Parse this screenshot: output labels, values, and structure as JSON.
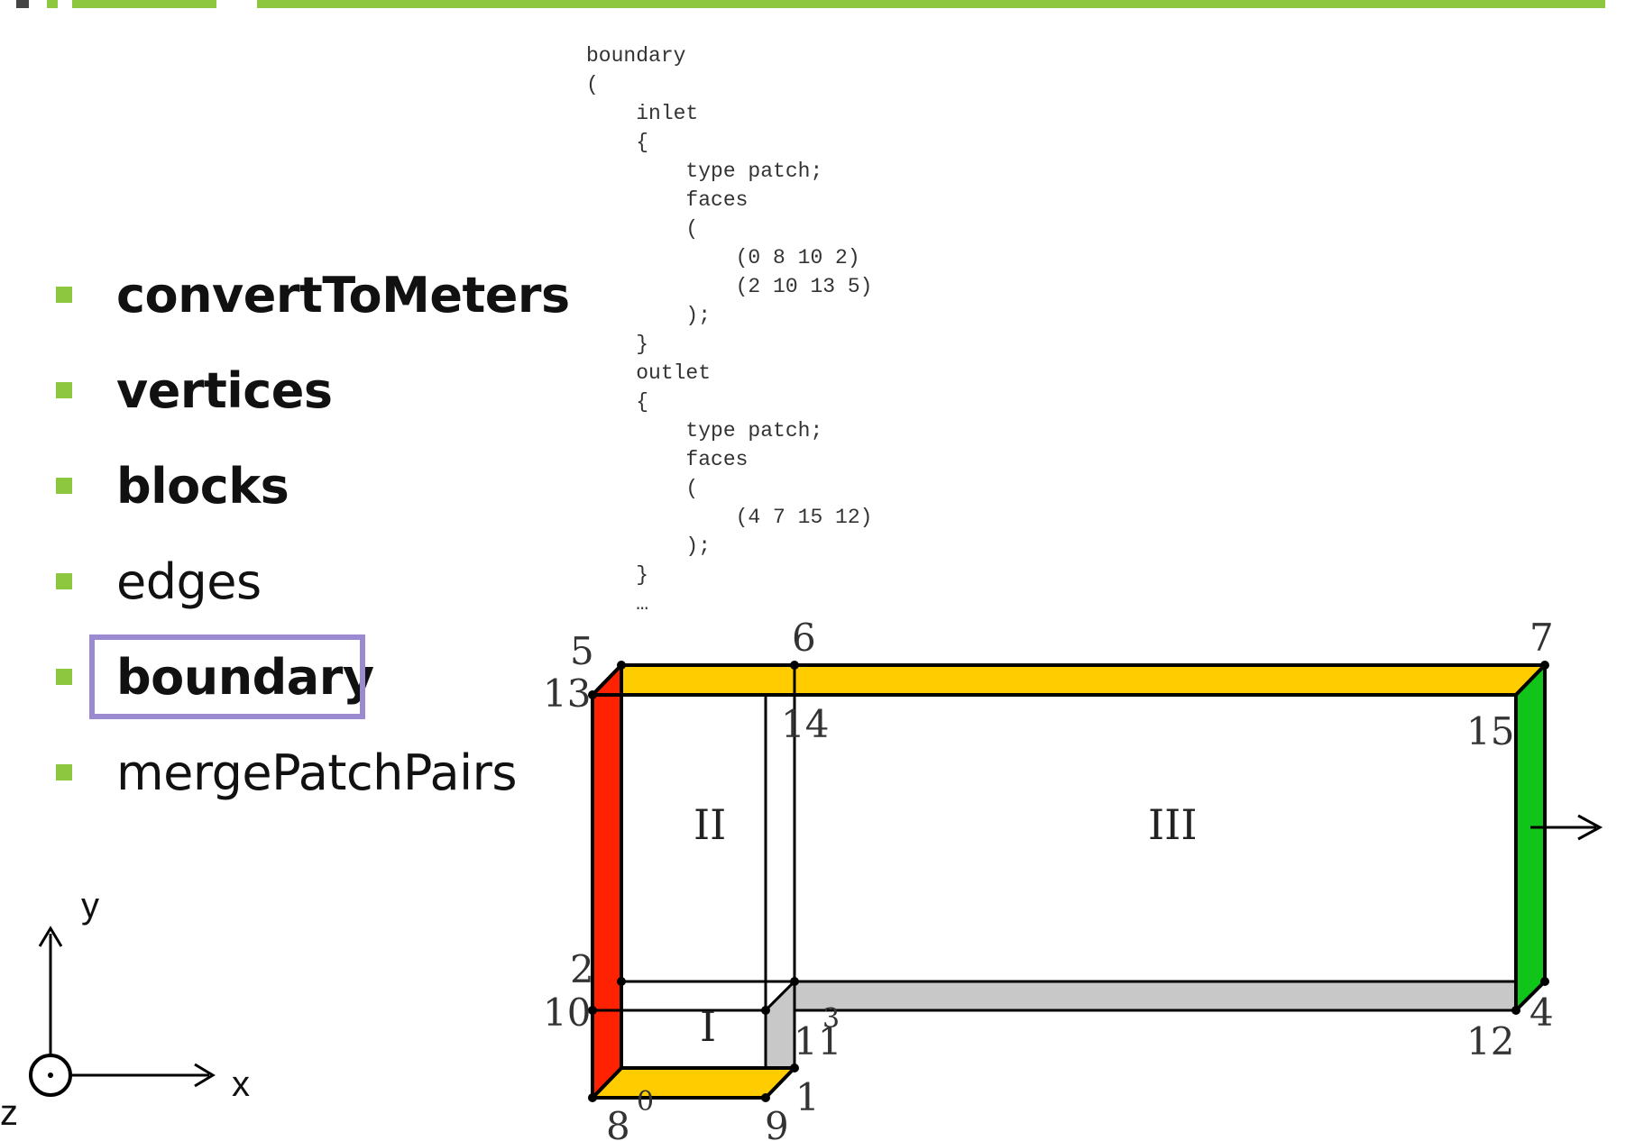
{
  "colors": {
    "accent_green": "#8dc63f",
    "highlight_border": "#9b8ad0",
    "inlet_face": "#ff2200",
    "outlet_face": "#11c41a",
    "top_bottom_face": "#ffcc00",
    "wall_face": "#c8c8c8"
  },
  "bullets": [
    {
      "label": "convertToMeters",
      "bold": true
    },
    {
      "label": "vertices",
      "bold": true
    },
    {
      "label": "blocks",
      "bold": true
    },
    {
      "label": "edges",
      "bold": false
    },
    {
      "label": "boundary",
      "bold": true,
      "highlighted": true
    },
    {
      "label": "mergePatchPairs",
      "bold": false
    }
  ],
  "code": {
    "lines": [
      "boundary",
      "(",
      "    inlet",
      "    {",
      "        type patch;",
      "        faces",
      "        (",
      "            (0 8 10 2)",
      "            (2 10 13 5)",
      "        );",
      "    }",
      "    outlet",
      "    {",
      "        type patch;",
      "        faces",
      "        (",
      "            (4 7 15 12)",
      "        );",
      "    }",
      "    …"
    ]
  },
  "diagram": {
    "vertex_labels": [
      "5",
      "13",
      "6",
      "7",
      "14",
      "15",
      "2",
      "10",
      "11",
      "3",
      "12",
      "4",
      "8",
      "0",
      "9",
      "1"
    ],
    "block_labels": [
      "I",
      "II",
      "III"
    ],
    "axes": {
      "y": "y",
      "x": "x",
      "z": "z"
    }
  }
}
